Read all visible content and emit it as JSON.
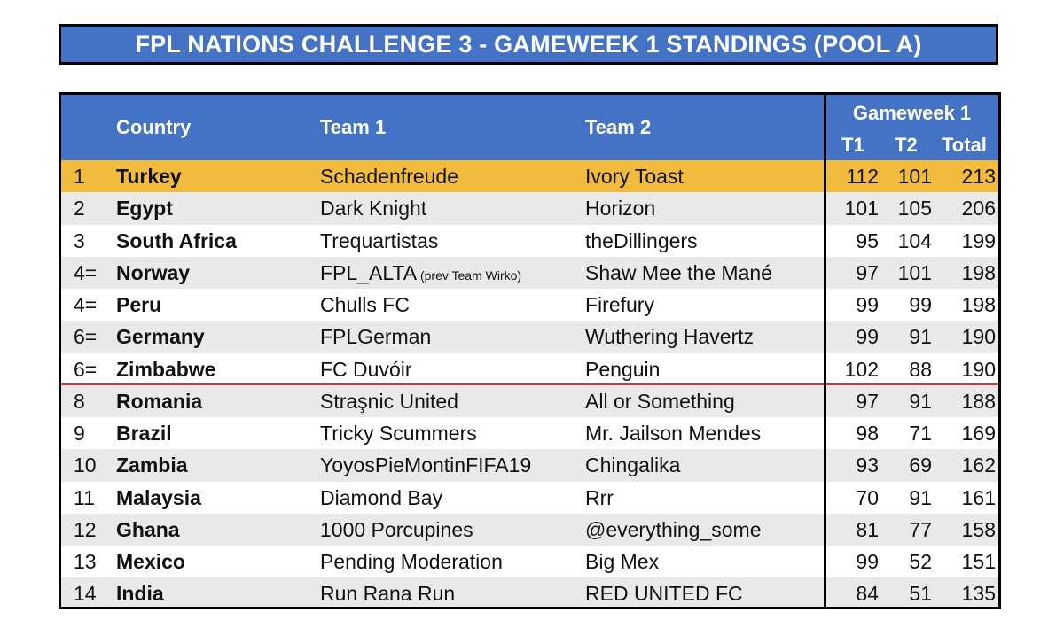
{
  "title": "FPL NATIONS CHALLENGE 3 - GAMEWEEK 1 STANDINGS (POOL A)",
  "headers": {
    "country": "Country",
    "team1": "Team 1",
    "team2": "Team 2",
    "gameweek": "Gameweek 1",
    "t1": "T1",
    "t2": "T2",
    "total": "Total"
  },
  "rows": [
    {
      "rank": "1",
      "country": "Turkey",
      "team1": "Schadenfreude",
      "team1_note": "",
      "team2": "Ivory Toast",
      "t1": "112",
      "t2": "101",
      "total": "213"
    },
    {
      "rank": "2",
      "country": "Egypt",
      "team1": "Dark Knight",
      "team1_note": "",
      "team2": "Horizon",
      "t1": "101",
      "t2": "105",
      "total": "206"
    },
    {
      "rank": "3",
      "country": "South Africa",
      "team1": "Trequartistas",
      "team1_note": "",
      "team2": "theDillingers",
      "t1": "95",
      "t2": "104",
      "total": "199"
    },
    {
      "rank": "4=",
      "country": "Norway",
      "team1": "FPL_ALTA",
      "team1_note": " (prev Team Wirko)",
      "team2": "Shaw Mee the Mané",
      "t1": "97",
      "t2": "101",
      "total": "198"
    },
    {
      "rank": "4=",
      "country": "Peru",
      "team1": "Chulls FC",
      "team1_note": "",
      "team2": "Firefury",
      "t1": "99",
      "t2": "99",
      "total": "198"
    },
    {
      "rank": "6=",
      "country": "Germany",
      "team1": "FPLGerman",
      "team1_note": "",
      "team2": "Wuthering Havertz",
      "t1": "99",
      "t2": "91",
      "total": "190"
    },
    {
      "rank": "6=",
      "country": "Zimbabwe",
      "team1": "FC Duvóir",
      "team1_note": "",
      "team2": "Penguin",
      "t1": "102",
      "t2": "88",
      "total": "190"
    },
    {
      "rank": "8",
      "country": "Romania",
      "team1": "Straşnic United",
      "team1_note": "",
      "team2": "All or Something",
      "t1": "97",
      "t2": "91",
      "total": "188"
    },
    {
      "rank": "9",
      "country": "Brazil",
      "team1": "Tricky Scummers",
      "team1_note": "",
      "team2": "Mr. Jailson Mendes",
      "t1": "98",
      "t2": "71",
      "total": "169"
    },
    {
      "rank": "10",
      "country": "Zambia",
      "team1": "YoyosPieMontinFIFA19",
      "team1_note": "",
      "team2": "Chingalika",
      "t1": "93",
      "t2": "69",
      "total": "162"
    },
    {
      "rank": "11",
      "country": "Malaysia",
      "team1": "Diamond Bay",
      "team1_note": "",
      "team2": "Rrr",
      "t1": "70",
      "t2": "91",
      "total": "161"
    },
    {
      "rank": "12",
      "country": "Ghana",
      "team1": "1000 Porcupines",
      "team1_note": "",
      "team2": "@everything_some",
      "t1": "81",
      "t2": "77",
      "total": "158"
    },
    {
      "rank": "13",
      "country": "Mexico",
      "team1": "Pending Moderation",
      "team1_note": "",
      "team2": "Big Mex",
      "t1": "99",
      "t2": "52",
      "total": "151"
    },
    {
      "rank": "14",
      "country": "India",
      "team1": "Run Rana Run",
      "team1_note": "",
      "team2": "RED UNITED FC",
      "t1": "84",
      "t2": "51",
      "total": "135"
    }
  ],
  "colors": {
    "header_blue": "#4472c4",
    "leader_highlight": "#f3bb3e",
    "row_stripe": "#e9e9e9",
    "cutoff_line": "#dd3333"
  },
  "cutoff_after_row_index": 6
}
